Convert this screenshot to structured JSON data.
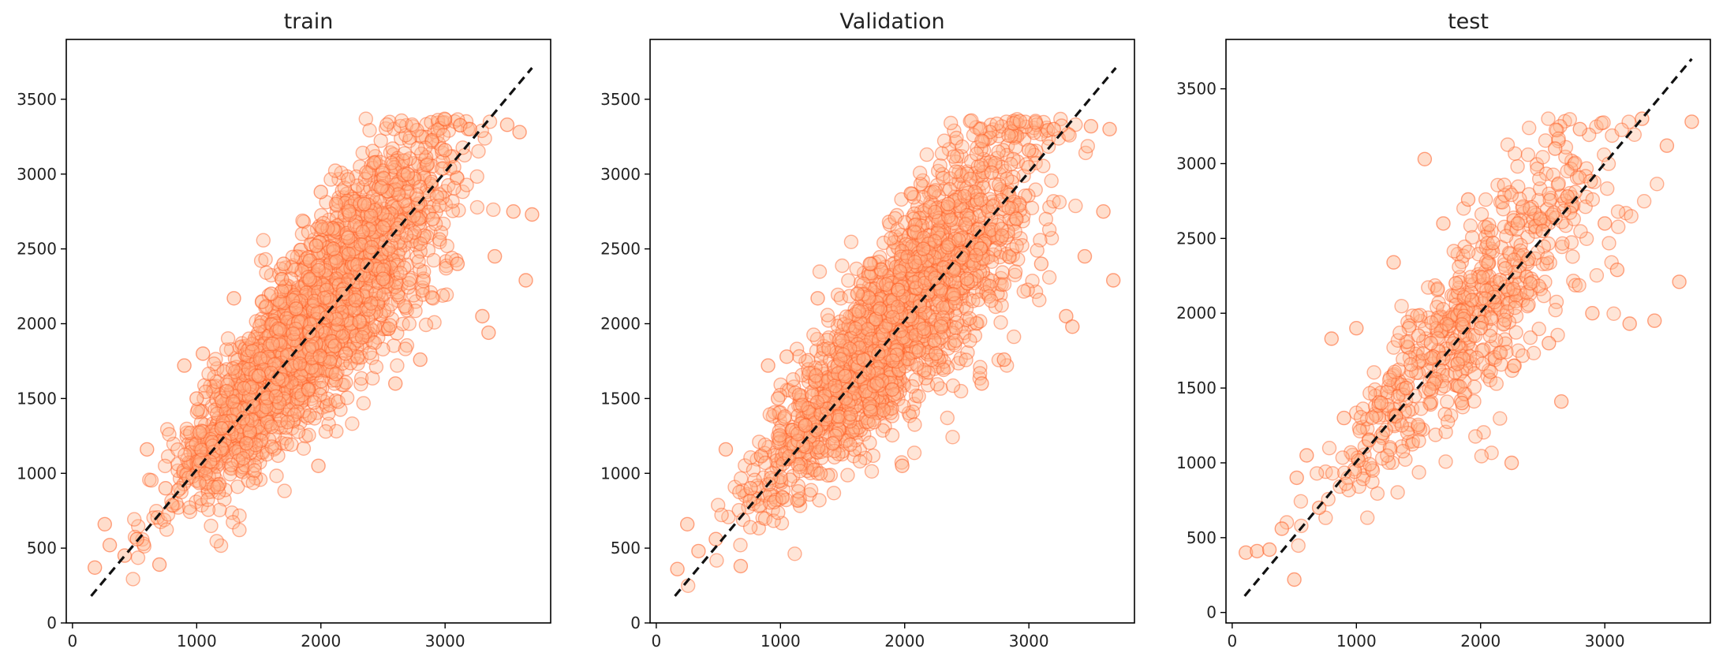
{
  "colors": {
    "marker_fill": "#ffb48c",
    "marker_edge": "#ff5a1f",
    "diagonal_line": "#111111",
    "axes": "#000000"
  },
  "chart_data": [
    {
      "type": "scatter",
      "title": "train",
      "xlabel": "",
      "ylabel": "",
      "xlim": [
        -50,
        3850
      ],
      "ylim": [
        0,
        3900
      ],
      "xticks": [
        0,
        1000,
        2000,
        3000
      ],
      "yticks": [
        0,
        500,
        1000,
        1500,
        2000,
        2500,
        3000,
        3500
      ],
      "grid": false,
      "reference_line": {
        "style": "dashed",
        "from": [
          150,
          180
        ],
        "to": [
          3700,
          3710
        ]
      },
      "point_cloud": {
        "count": 2400,
        "x_range": [
          150,
          3720
        ],
        "y_range": [
          200,
          3370
        ],
        "marker_opacity": 0.35
      },
      "points": [
        [
          180,
          370
        ],
        [
          260,
          660
        ],
        [
          300,
          520
        ],
        [
          420,
          450
        ],
        [
          520,
          560
        ],
        [
          600,
          1160
        ],
        [
          700,
          390
        ],
        [
          750,
          900
        ],
        [
          900,
          1720
        ],
        [
          1000,
          1500
        ],
        [
          1050,
          1800
        ],
        [
          1200,
          1300
        ],
        [
          1300,
          2170
        ],
        [
          1400,
          1200
        ],
        [
          1500,
          1650
        ],
        [
          1600,
          2200
        ],
        [
          1700,
          2400
        ],
        [
          1800,
          2100
        ],
        [
          1900,
          1560
        ],
        [
          1980,
          1050
        ],
        [
          2000,
          2880
        ],
        [
          2100,
          2500
        ],
        [
          2200,
          1800
        ],
        [
          2350,
          2800
        ],
        [
          2500,
          2300
        ],
        [
          2600,
          1600
        ],
        [
          2700,
          3000
        ],
        [
          2800,
          1760
        ],
        [
          2900,
          2700
        ],
        [
          3000,
          3160
        ],
        [
          3100,
          2400
        ],
        [
          3200,
          3300
        ],
        [
          3300,
          2050
        ],
        [
          3350,
          1940
        ],
        [
          3400,
          2450
        ],
        [
          3500,
          3330
        ],
        [
          3550,
          2750
        ],
        [
          3600,
          3280
        ],
        [
          3650,
          2290
        ],
        [
          3700,
          2730
        ]
      ]
    },
    {
      "type": "scatter",
      "title": "Validation",
      "xlabel": "",
      "ylabel": "",
      "xlim": [
        -50,
        3850
      ],
      "ylim": [
        0,
        3900
      ],
      "xticks": [
        0,
        1000,
        2000,
        3000
      ],
      "yticks": [
        0,
        500,
        1000,
        1500,
        2000,
        2500,
        3000,
        3500
      ],
      "grid": false,
      "reference_line": {
        "style": "dashed",
        "from": [
          150,
          180
        ],
        "to": [
          3700,
          3710
        ]
      },
      "point_cloud": {
        "count": 2000,
        "x_range": [
          150,
          3720
        ],
        "y_range": [
          200,
          3370
        ],
        "marker_opacity": 0.35
      },
      "points": [
        [
          170,
          360
        ],
        [
          250,
          660
        ],
        [
          340,
          480
        ],
        [
          480,
          560
        ],
        [
          560,
          1160
        ],
        [
          680,
          380
        ],
        [
          760,
          900
        ],
        [
          900,
          1720
        ],
        [
          980,
          1500
        ],
        [
          1050,
          1780
        ],
        [
          1200,
          1320
        ],
        [
          1300,
          2170
        ],
        [
          1420,
          1200
        ],
        [
          1520,
          1650
        ],
        [
          1620,
          2200
        ],
        [
          1720,
          2400
        ],
        [
          1800,
          2100
        ],
        [
          1900,
          1560
        ],
        [
          1980,
          1050
        ],
        [
          2050,
          2870
        ],
        [
          2150,
          2500
        ],
        [
          2250,
          1800
        ],
        [
          2350,
          2800
        ],
        [
          2500,
          2300
        ],
        [
          2620,
          1600
        ],
        [
          2700,
          3010
        ],
        [
          2800,
          1760
        ],
        [
          2900,
          2700
        ],
        [
          3000,
          3160
        ],
        [
          3100,
          2400
        ],
        [
          3200,
          3300
        ],
        [
          3300,
          2050
        ],
        [
          3350,
          1980
        ],
        [
          3450,
          2450
        ],
        [
          3500,
          3320
        ],
        [
          3600,
          2750
        ],
        [
          3650,
          3300
        ],
        [
          3680,
          2290
        ]
      ]
    },
    {
      "type": "scatter",
      "title": "test",
      "xlabel": "",
      "ylabel": "",
      "xlim": [
        -50,
        3850
      ],
      "ylim": [
        -70,
        3830
      ],
      "xticks": [
        0,
        1000,
        2000,
        3000
      ],
      "yticks": [
        0,
        500,
        1000,
        1500,
        2000,
        2500,
        3000,
        3500
      ],
      "grid": false,
      "reference_line": {
        "style": "dashed",
        "from": [
          100,
          110
        ],
        "to": [
          3700,
          3700
        ]
      },
      "point_cloud": {
        "count": 620,
        "x_range": [
          100,
          3750
        ],
        "y_range": [
          200,
          3300
        ],
        "marker_opacity": 0.35
      },
      "points": [
        [
          110,
          400
        ],
        [
          200,
          410
        ],
        [
          300,
          420
        ],
        [
          400,
          560
        ],
        [
          500,
          220
        ],
        [
          520,
          900
        ],
        [
          600,
          1050
        ],
        [
          700,
          700
        ],
        [
          800,
          1830
        ],
        [
          900,
          1300
        ],
        [
          1000,
          1900
        ],
        [
          1100,
          1150
        ],
        [
          1200,
          1400
        ],
        [
          1300,
          2340
        ],
        [
          1400,
          1500
        ],
        [
          1500,
          1850
        ],
        [
          1550,
          3030
        ],
        [
          1600,
          1800
        ],
        [
          1700,
          2600
        ],
        [
          1800,
          2200
        ],
        [
          1850,
          1400
        ],
        [
          1900,
          2760
        ],
        [
          2000,
          1900
        ],
        [
          2100,
          2470
        ],
        [
          2200,
          2300
        ],
        [
          2250,
          1000
        ],
        [
          2300,
          2600
        ],
        [
          2400,
          2200
        ],
        [
          2500,
          2550
        ],
        [
          2550,
          1800
        ],
        [
          2600,
          3100
        ],
        [
          2650,
          1410
        ],
        [
          2700,
          2780
        ],
        [
          2800,
          3230
        ],
        [
          2900,
          2000
        ],
        [
          3000,
          2600
        ],
        [
          3100,
          2290
        ],
        [
          3200,
          1930
        ],
        [
          3300,
          3300
        ],
        [
          3400,
          1950
        ],
        [
          3500,
          3120
        ],
        [
          3600,
          2210
        ],
        [
          3700,
          3280
        ]
      ]
    }
  ]
}
